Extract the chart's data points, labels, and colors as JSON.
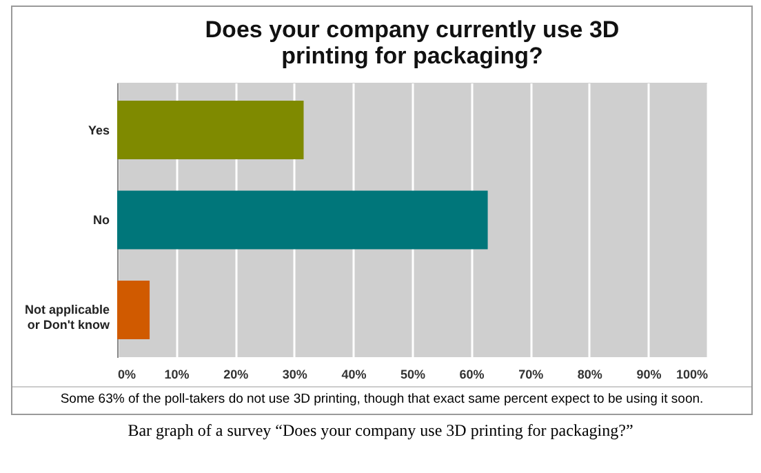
{
  "chart_data": {
    "type": "bar",
    "orientation": "horizontal",
    "title": "Does your company currently use 3D printing for packaging?",
    "categories": [
      "Yes",
      "No",
      "Not applicable or Don't know"
    ],
    "values": [
      31.6,
      62.8,
      5.5
    ],
    "colors": [
      "#7f8a00",
      "#00767a",
      "#d05a00"
    ],
    "xlim": [
      0,
      100
    ],
    "xticks": [
      {
        "value": 0,
        "label": "0%"
      },
      {
        "value": 10,
        "label": "10%"
      },
      {
        "value": 20,
        "label": "20%"
      },
      {
        "value": 30,
        "label": "30%"
      },
      {
        "value": 40,
        "label": "40%"
      },
      {
        "value": 50,
        "label": "50%"
      },
      {
        "value": 60,
        "label": "60%"
      },
      {
        "value": 70,
        "label": "70%"
      },
      {
        "value": 80,
        "label": "80%"
      },
      {
        "value": 90,
        "label": "90%"
      },
      {
        "value": 100,
        "label": "100%"
      }
    ],
    "grid": "x",
    "annotations": [
      "Some 63% of the poll-takers do not use 3D printing, though that exact same percent expect to be using it soon.",
      "Bar graph of a survey “Does your company use 3D printing for packaging?”"
    ]
  }
}
